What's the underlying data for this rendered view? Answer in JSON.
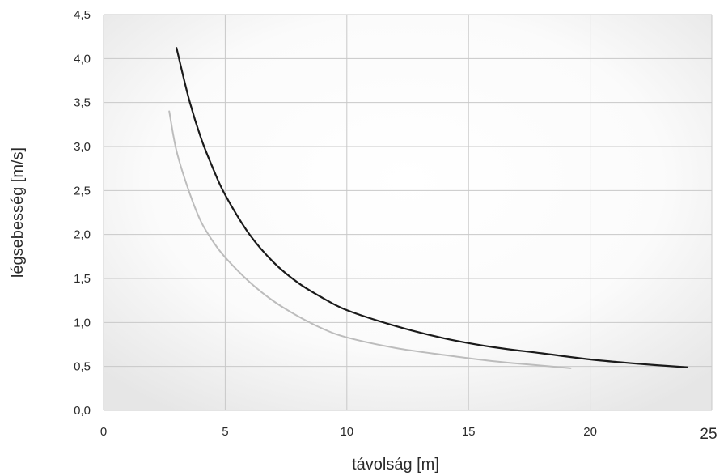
{
  "chart_data": {
    "type": "line",
    "title": "",
    "xlabel": "távolság [m]",
    "ylabel": "légsebesség [m/s]",
    "xlim": [
      0,
      25
    ],
    "ylim": [
      0,
      4.5
    ],
    "grid": true,
    "x_ticks": [
      0,
      5,
      10,
      15,
      20,
      25
    ],
    "x_tick_labels": [
      "0",
      "5",
      "10",
      "15",
      "20",
      "25"
    ],
    "y_ticks": [
      0,
      0.5,
      1,
      1.5,
      2,
      2.5,
      3,
      3.5,
      4,
      4.5
    ],
    "y_tick_labels": [
      "0,0",
      "0,5",
      "1,0",
      "1,5",
      "2,0",
      "2,5",
      "3,0",
      "3,5",
      "4,0",
      "4,5"
    ],
    "series": [
      {
        "color": "#1a1a1a",
        "x": [
          3,
          3.5,
          4,
          4.5,
          5,
          6,
          7,
          8,
          9,
          10,
          12,
          14,
          16,
          18,
          20,
          22,
          24
        ],
        "y": [
          4.12,
          3.55,
          3.1,
          2.75,
          2.45,
          2.0,
          1.68,
          1.45,
          1.28,
          1.14,
          0.96,
          0.82,
          0.72,
          0.65,
          0.58,
          0.53,
          0.49
        ]
      },
      {
        "color": "#bcbcbc",
        "x": [
          2.7,
          3,
          3.5,
          4,
          4.5,
          5,
          6,
          7,
          8,
          9,
          10,
          12,
          14,
          16,
          18,
          19.2
        ],
        "y": [
          3.4,
          2.95,
          2.5,
          2.15,
          1.92,
          1.74,
          1.46,
          1.24,
          1.07,
          0.93,
          0.83,
          0.71,
          0.63,
          0.56,
          0.51,
          0.48
        ]
      }
    ]
  }
}
